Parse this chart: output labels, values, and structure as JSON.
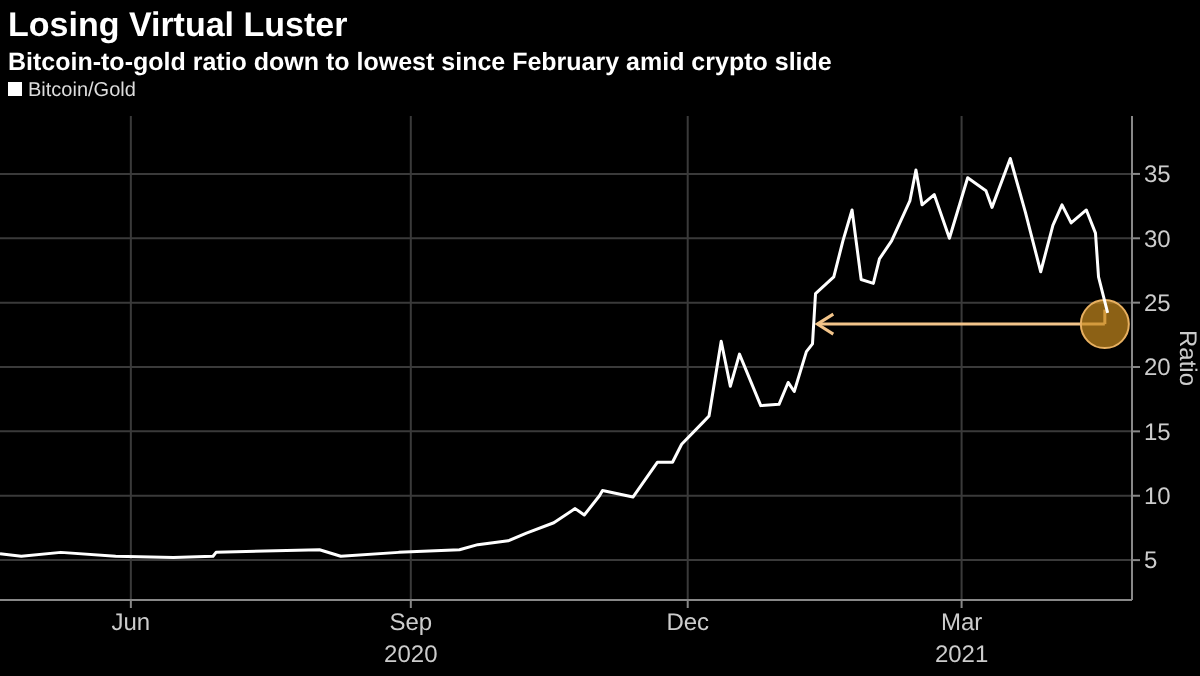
{
  "chart_data": {
    "type": "line",
    "title": "Losing Virtual Luster",
    "subtitle": "Bitcoin-to-gold ratio down to lowest since February amid crypto slide",
    "ylabel": "Ratio",
    "x": [
      "2020-04-19",
      "2020-04-26",
      "2020-05-09",
      "2020-05-27",
      "2020-06-15",
      "2020-06-28",
      "2020-06-29",
      "2020-07-15",
      "2020-08-02",
      "2020-08-09",
      "2020-08-28",
      "2020-09-17",
      "2020-09-23",
      "2020-10-03",
      "2020-10-09",
      "2020-10-18",
      "2020-10-25",
      "2020-10-28",
      "2020-11-02",
      "2020-11-03",
      "2020-11-13",
      "2020-11-21",
      "2020-11-26",
      "2020-11-29",
      "2020-12-06",
      "2020-12-08",
      "2020-12-12",
      "2020-12-15",
      "2020-12-18",
      "2020-12-25",
      "2020-12-31",
      "2021-01-03",
      "2021-01-05",
      "2021-01-09",
      "2021-01-11",
      "2021-01-12",
      "2021-01-18",
      "2021-01-21",
      "2021-01-24",
      "2021-01-27",
      "2021-01-31",
      "2021-02-02",
      "2021-02-06",
      "2021-02-12",
      "2021-02-14",
      "2021-02-16",
      "2021-02-20",
      "2021-02-25",
      "2021-03-03",
      "2021-03-09",
      "2021-03-11",
      "2021-03-17",
      "2021-03-22",
      "2021-03-27",
      "2021-03-31",
      "2021-04-03",
      "2021-04-06",
      "2021-04-11",
      "2021-04-14",
      "2021-04-15",
      "2021-04-18"
    ],
    "series": [
      {
        "name": "Bitcoin/Gold",
        "color": "#ffffff",
        "values": [
          5.5,
          5.3,
          5.6,
          5.3,
          5.2,
          5.3,
          5.6,
          5.7,
          5.8,
          5.3,
          5.6,
          5.8,
          6.2,
          6.5,
          7.1,
          7.9,
          9.0,
          8.5,
          10.0,
          10.4,
          9.9,
          12.6,
          12.6,
          14.0,
          15.7,
          16.2,
          22.0,
          18.5,
          21.0,
          17.0,
          17.1,
          18.8,
          18.1,
          21.2,
          21.8,
          25.7,
          27.0,
          29.8,
          32.2,
          26.8,
          26.5,
          28.4,
          29.8,
          32.9,
          35.3,
          32.6,
          33.4,
          30.0,
          34.7,
          33.7,
          32.4,
          36.2,
          32.0,
          27.4,
          31.0,
          32.6,
          31.2,
          32.2,
          30.4,
          27.0,
          24.2
        ]
      }
    ],
    "xlim": [
      "2020-04-19",
      "2021-04-26"
    ],
    "xticks": [
      {
        "value": "2020-06-01",
        "label": "Jun"
      },
      {
        "value": "2020-09-01",
        "label": "Sep\n2020"
      },
      {
        "value": "2020-12-01",
        "label": "Dec"
      },
      {
        "value": "2021-03-01",
        "label": "Mar\n2021"
      }
    ],
    "ylim": [
      1.9,
      39.5
    ],
    "yticks": [
      5,
      10,
      15,
      20,
      25,
      30,
      35
    ],
    "grid": true,
    "legend": "top left",
    "marker": "none",
    "line_style": "solid"
  }
}
